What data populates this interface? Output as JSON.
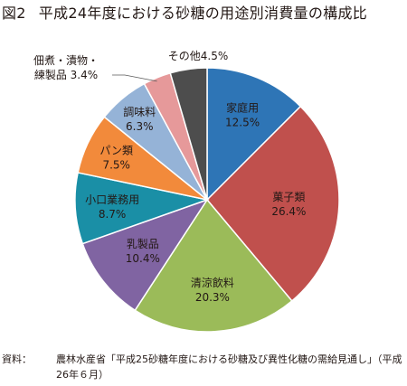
{
  "figure": {
    "number": "図2",
    "title": "平成24年度における砂糖の用途別消費量の構成比"
  },
  "source": {
    "label": "資料：",
    "text": "農林水産省「平成25砂糖年度における砂糖及び異性化糖の需給見通し」（平成26年６月）"
  },
  "chart_data": {
    "type": "pie",
    "title": "平成24年度における砂糖の用途別消費量の構成比",
    "unit": "%",
    "start": "12 o'clock",
    "direction": "clockwise",
    "legend": "none (labels on slices)",
    "slices": [
      {
        "name": "家庭用",
        "label": "家庭用",
        "value": 12.5,
        "value_label": "12.5%",
        "color": "#2e75b6"
      },
      {
        "name": "菓子類",
        "label": "菓子類",
        "value": 26.4,
        "value_label": "26.4%",
        "color": "#c0504d"
      },
      {
        "name": "清涼飲料",
        "label": "清涼飲料",
        "value": 20.3,
        "value_label": "20.3%",
        "color": "#9bbb59"
      },
      {
        "name": "乳製品",
        "label": "乳製品",
        "value": 10.4,
        "value_label": "10.4%",
        "color": "#8064a2"
      },
      {
        "name": "小口業務用",
        "label": "小口業務用",
        "value": 8.7,
        "value_label": "8.7%",
        "color": "#1a8fa6"
      },
      {
        "name": "パン類",
        "label": "パン類",
        "value": 7.5,
        "value_label": "7.5%",
        "color": "#f28a3b"
      },
      {
        "name": "調味料",
        "label": "調味料",
        "value": 6.3,
        "value_label": "6.3%",
        "color": "#95b3d7"
      },
      {
        "name": "佃煮・漬物・練製品",
        "label": "佃煮・漬物・",
        "label_line2": "練製品 3.4%",
        "value": 3.4,
        "value_label": "3.4%",
        "color": "#e6999a"
      },
      {
        "name": "その他",
        "label": "その他4.5%",
        "value": 4.5,
        "value_label": "4.5%",
        "color": "#4d4d4d"
      }
    ]
  }
}
